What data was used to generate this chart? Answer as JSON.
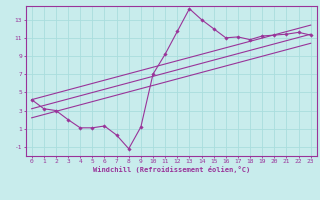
{
  "xlabel": "Windchill (Refroidissement éolien,°C)",
  "bg_color": "#c8ecec",
  "line_color": "#993399",
  "grid_color": "#aadddd",
  "xlim": [
    -0.5,
    23.5
  ],
  "ylim": [
    -2,
    14.5
  ],
  "xticks": [
    0,
    1,
    2,
    3,
    4,
    5,
    6,
    7,
    8,
    9,
    10,
    11,
    12,
    13,
    14,
    15,
    16,
    17,
    18,
    19,
    20,
    21,
    22,
    23
  ],
  "yticks": [
    -1,
    1,
    3,
    5,
    7,
    9,
    11,
    13
  ],
  "main_x": [
    0,
    1,
    2,
    3,
    4,
    5,
    6,
    7,
    8,
    9,
    10,
    11,
    12,
    13,
    14,
    15,
    16,
    17,
    18,
    19,
    20,
    21,
    22,
    23
  ],
  "main_y": [
    4.2,
    3.2,
    3.0,
    2.0,
    1.1,
    1.1,
    1.3,
    0.3,
    -1.2,
    1.2,
    7.0,
    9.2,
    11.7,
    14.2,
    13.0,
    12.0,
    11.0,
    11.1,
    10.8,
    11.2,
    11.3,
    11.4,
    11.6,
    11.3
  ],
  "reg_line_x": [
    0,
    23
  ],
  "reg_line_y": [
    3.2,
    11.4
  ],
  "upper_line_x": [
    0,
    23
  ],
  "upper_line_y": [
    4.2,
    12.4
  ],
  "lower_line_x": [
    0,
    23
  ],
  "lower_line_y": [
    2.2,
    10.4
  ]
}
